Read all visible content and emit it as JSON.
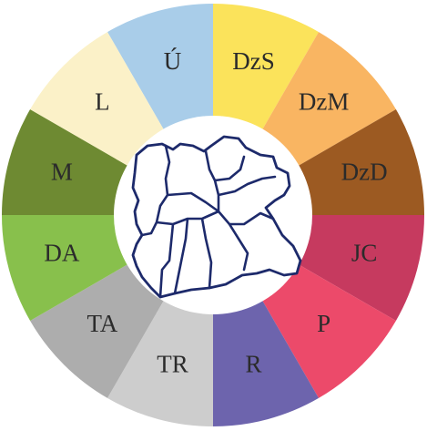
{
  "wheel": {
    "segments": [
      {
        "label": "Ú",
        "color": "#a9cde9"
      },
      {
        "label": "DzS",
        "color": "#fbe35b"
      },
      {
        "label": "DzM",
        "color": "#f9b562"
      },
      {
        "label": "DzD",
        "color": "#9c5a22"
      },
      {
        "label": "JC",
        "color": "#c63a5f"
      },
      {
        "label": "P",
        "color": "#ec4a6a"
      },
      {
        "label": "R",
        "color": "#6d64ad"
      },
      {
        "label": "TR",
        "color": "#cdcdcd"
      },
      {
        "label": "TA",
        "color": "#adadad"
      },
      {
        "label": "DA",
        "color": "#88c04c"
      },
      {
        "label": "M",
        "color": "#6e8a32"
      },
      {
        "label": "L",
        "color": "#fbf1c8"
      }
    ],
    "center": {
      "background": "#ffffff",
      "map_outline_color": "#1d2a6b"
    }
  }
}
